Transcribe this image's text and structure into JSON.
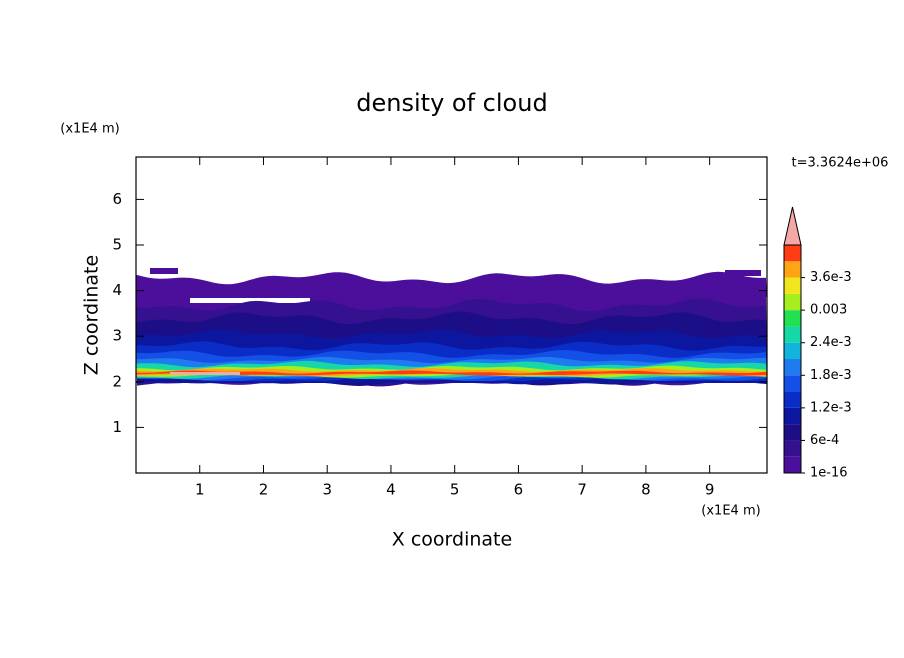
{
  "chart_data": {
    "type": "contour",
    "title": "density of cloud",
    "x_label": "X coordinate",
    "y_label": "Z coordinate",
    "x_unit": "(x1E4 m)",
    "y_unit": "(x1E4 m)",
    "time_label": "t=3.3624e+06",
    "xlim": [
      0,
      9.9
    ],
    "ylim": [
      0,
      6.93
    ],
    "xticks": [
      1,
      2,
      3,
      4,
      5,
      6,
      7,
      8,
      9
    ],
    "yticks": [
      1,
      2,
      3,
      4,
      5,
      6
    ],
    "colorbar": {
      "levels": [
        {
          "value": 1e-16,
          "label": "1e-16"
        },
        {
          "value": 0.0006,
          "label": "6e-4"
        },
        {
          "value": 0.0012,
          "label": "1.2e-3"
        },
        {
          "value": 0.0018,
          "label": "1.8e-3"
        },
        {
          "value": 0.0024,
          "label": "2.4e-3"
        },
        0.003,
        {
          "value": 0.0036,
          "label": "3.6e-3"
        }
      ],
      "colors": [
        "#4b0f9c",
        "#35108f",
        "#1c0e86",
        "#0c169e",
        "#0a2dc8",
        "#1450e6",
        "#1e7cf0",
        "#12b4dc",
        "#16d8a6",
        "#22e050",
        "#a6ee1e",
        "#f0e61e",
        "#ffa414",
        "#ff3c14"
      ],
      "extend_color": "#f4a8a8"
    }
  }
}
